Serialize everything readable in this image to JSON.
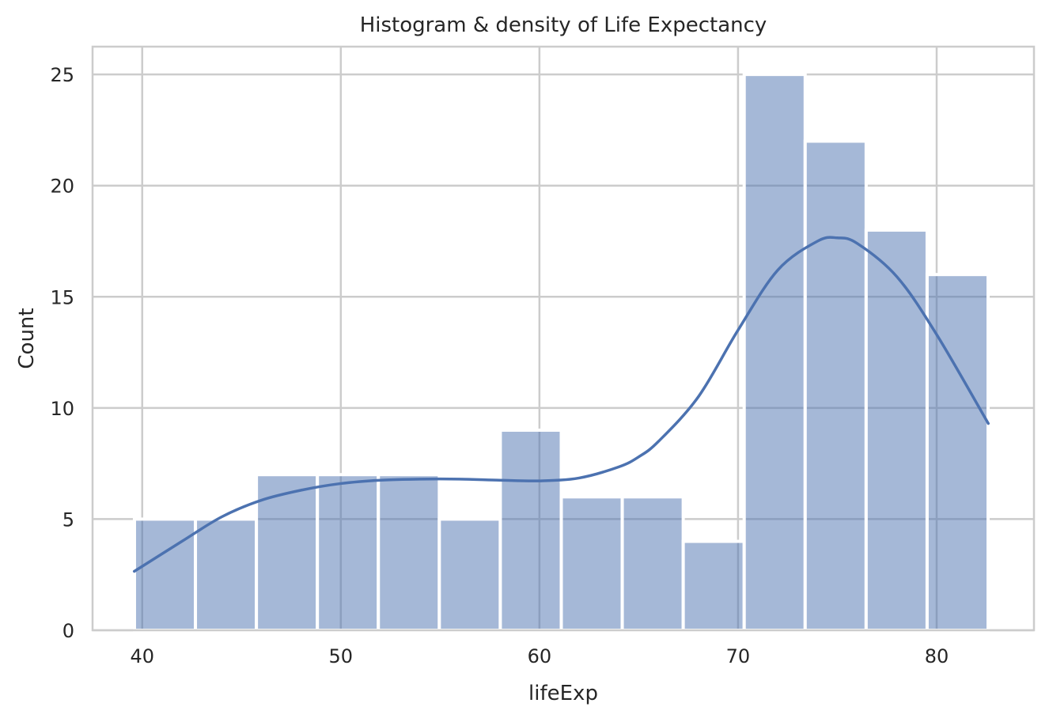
{
  "chart_data": {
    "type": "bar",
    "title": "Histogram & density of Life Expectancy",
    "xlabel": "lifeExp",
    "ylabel": "Count",
    "xlim": [
      37.5,
      84.9
    ],
    "ylim": [
      0,
      26.25
    ],
    "xticks": [
      40,
      50,
      60,
      70,
      80
    ],
    "yticks": [
      0,
      5,
      10,
      15,
      20,
      25
    ],
    "grid": true,
    "bins": [
      {
        "start": 39.61,
        "end": 42.68,
        "count": 5
      },
      {
        "start": 42.68,
        "end": 45.75,
        "count": 5
      },
      {
        "start": 45.75,
        "end": 48.82,
        "count": 7
      },
      {
        "start": 48.82,
        "end": 51.89,
        "count": 7
      },
      {
        "start": 51.89,
        "end": 54.96,
        "count": 7
      },
      {
        "start": 54.96,
        "end": 58.03,
        "count": 5
      },
      {
        "start": 58.03,
        "end": 61.1,
        "count": 9
      },
      {
        "start": 61.1,
        "end": 64.17,
        "count": 6
      },
      {
        "start": 64.17,
        "end": 67.24,
        "count": 6
      },
      {
        "start": 67.24,
        "end": 70.31,
        "count": 4
      },
      {
        "start": 70.31,
        "end": 73.38,
        "count": 25
      },
      {
        "start": 73.38,
        "end": 76.45,
        "count": 22
      },
      {
        "start": 76.45,
        "end": 79.52,
        "count": 18
      },
      {
        "start": 79.52,
        "end": 82.59,
        "count": 16
      }
    ],
    "density_curve": {
      "name": "KDE",
      "x": [
        39.6,
        42,
        44,
        46,
        48,
        50,
        52,
        54,
        56,
        58,
        60,
        62,
        64,
        65,
        66,
        68,
        70,
        72,
        74,
        75,
        76,
        78,
        80,
        82.6
      ],
      "y": [
        2.65,
        4.0,
        5.1,
        5.85,
        6.3,
        6.6,
        6.75,
        6.8,
        6.8,
        6.75,
        6.72,
        6.85,
        7.35,
        7.8,
        8.5,
        10.5,
        13.5,
        16.2,
        17.5,
        17.65,
        17.4,
        15.9,
        13.3,
        9.3
      ]
    },
    "colors": {
      "bar_fill": "#4c72b0",
      "bar_opacity": 0.5,
      "line": "#4c72b0",
      "grid": "#cccccc",
      "axes_edge": "#cccccc",
      "bar_edge": "#ffffff"
    }
  }
}
